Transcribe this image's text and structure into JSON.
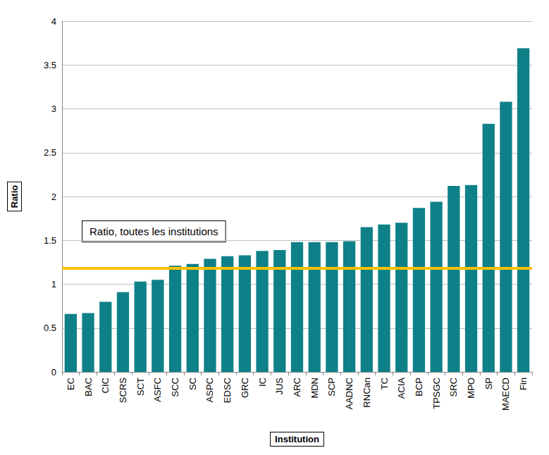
{
  "chart_data": {
    "type": "bar",
    "x_label": "Institution",
    "y_label": "Ratio",
    "categories": [
      "EC",
      "BAC",
      "CIC",
      "SCRS",
      "SCT",
      "ASFC",
      "SCC",
      "SC",
      "ASPC",
      "EDSC",
      "GRC",
      "IC",
      "JUS",
      "ARC",
      "MDN",
      "SCP",
      "AADNC",
      "RNCan",
      "TC",
      "ACIA",
      "BCP",
      "TPSGC",
      "SRC",
      "MPO",
      "SP",
      "MAECD",
      "Fin"
    ],
    "values": [
      0.66,
      0.67,
      0.8,
      0.91,
      1.03,
      1.05,
      1.21,
      1.23,
      1.29,
      1.32,
      1.33,
      1.38,
      1.39,
      1.48,
      1.48,
      1.48,
      1.49,
      1.65,
      1.68,
      1.7,
      1.87,
      1.94,
      2.12,
      2.13,
      2.83,
      3.08,
      3.69
    ],
    "color": "#0e8088",
    "reference_line": {
      "label": "Ratio, toutes les institutions",
      "value": 1.18,
      "color": "#ffc000"
    },
    "ylim": [
      0,
      4
    ],
    "yticks": [
      0,
      0.5,
      1,
      1.5,
      2,
      2.5,
      3,
      3.5,
      4
    ],
    "grid": true
  }
}
